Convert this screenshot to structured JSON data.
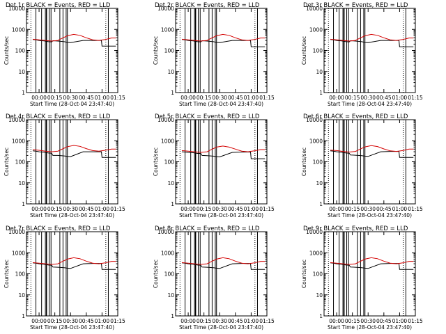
{
  "chart_data": [
    {
      "type": "line",
      "title": "Det 1r  BLACK = Events, RED = LLD",
      "xlabel": "Start Time (28-Oct-04 23:47:40)",
      "ylabel": "Counts/sec",
      "x_ticks": [
        "00:00",
        "00:15",
        "00:30",
        "00:45",
        "01:00",
        "01:15"
      ],
      "y_ticks": [
        "1",
        "10",
        "100",
        "1000",
        "10000"
      ],
      "ylim": [
        1,
        10000
      ],
      "y_scale": "log",
      "series": [
        {
          "name": "BLACK = Events",
          "color": "#000000",
          "x": [
            -0.1,
            -0.05,
            0,
            0.08,
            0.15,
            0.2,
            0.22,
            0.3,
            0.4,
            0.45,
            0.5,
            0.7,
            0.85,
            0.99,
            1.0,
            1.15,
            1.22
          ],
          "y": [
            330,
            320,
            300,
            285,
            260,
            255,
            290,
            280,
            260,
            240,
            235,
            300,
            300,
            300,
            160,
            160,
            160
          ]
        },
        {
          "name": "RED = LLD",
          "color": "#d40000",
          "x": [
            -0.1,
            0,
            0.1,
            0.2,
            0.3,
            0.35,
            0.45,
            0.55,
            0.65,
            0.75,
            0.85,
            0.95,
            1.05,
            1.15,
            1.22
          ],
          "y": [
            340,
            320,
            300,
            280,
            300,
            360,
            500,
            580,
            520,
            400,
            320,
            300,
            330,
            390,
            390
          ]
        }
      ],
      "vlines": [
        -0.05,
        0.04,
        0.1,
        0.115,
        0.12,
        0.16,
        0.19,
        0.33,
        0.38,
        0.43,
        0.45,
        1.1
      ]
    },
    {
      "type": "line",
      "title": "Det 2r  BLACK = Events, RED = LLD",
      "xlabel": "Start Time (28-Oct-04 23:47:40)",
      "ylabel": "Counts/sec",
      "x_ticks": [
        "00:00",
        "00:15",
        "00:30",
        "00:45",
        "01:00",
        "01:15"
      ],
      "y_ticks": [
        "1",
        "10",
        "100",
        "1000",
        "10000"
      ],
      "ylim": [
        1,
        10000
      ],
      "y_scale": "log",
      "series": [
        {
          "name": "BLACK = Events",
          "color": "#000000",
          "x": [
            -0.1,
            -0.05,
            0,
            0.08,
            0.15,
            0.2,
            0.22,
            0.3,
            0.4,
            0.45,
            0.5,
            0.7,
            0.85,
            0.99,
            1.0,
            1.15,
            1.22
          ],
          "y": [
            330,
            320,
            300,
            285,
            260,
            255,
            290,
            280,
            260,
            240,
            235,
            300,
            300,
            300,
            150,
            150,
            150
          ]
        },
        {
          "name": "RED = LLD",
          "color": "#d40000",
          "x": [
            -0.1,
            0,
            0.1,
            0.2,
            0.3,
            0.35,
            0.45,
            0.55,
            0.65,
            0.75,
            0.85,
            0.95,
            1.05,
            1.15,
            1.22
          ],
          "y": [
            340,
            320,
            300,
            280,
            300,
            360,
            500,
            580,
            520,
            400,
            320,
            300,
            330,
            390,
            390
          ]
        }
      ],
      "vlines": [
        -0.05,
        0.04,
        0.1,
        0.115,
        0.12,
        0.16,
        0.19,
        0.33,
        0.38,
        0.43,
        0.45,
        1.1
      ]
    },
    {
      "type": "line",
      "title": "Det 3r  BLACK = Events, RED = LLD",
      "xlabel": "Start Time (28-Oct-04 23:47:40)",
      "ylabel": "Counts/sec",
      "x_ticks": [
        "00:00",
        "00:15",
        "00:30",
        "00:45",
        "01:00",
        "01:15"
      ],
      "y_ticks": [
        "1",
        "10",
        "100",
        "1000",
        "10000"
      ],
      "ylim": [
        1,
        10000
      ],
      "y_scale": "log",
      "series": [
        {
          "name": "BLACK = Events",
          "color": "#000000",
          "x": [
            -0.1,
            -0.05,
            0,
            0.08,
            0.15,
            0.2,
            0.22,
            0.3,
            0.4,
            0.45,
            0.5,
            0.7,
            0.85,
            0.99,
            1.0,
            1.15,
            1.22
          ],
          "y": [
            330,
            320,
            300,
            285,
            260,
            255,
            290,
            280,
            260,
            240,
            235,
            300,
            300,
            300,
            150,
            150,
            150
          ]
        },
        {
          "name": "RED = LLD",
          "color": "#d40000",
          "x": [
            -0.1,
            0,
            0.1,
            0.2,
            0.3,
            0.35,
            0.45,
            0.55,
            0.65,
            0.75,
            0.85,
            0.95,
            1.05,
            1.15,
            1.22
          ],
          "y": [
            340,
            320,
            300,
            280,
            300,
            360,
            500,
            580,
            520,
            400,
            320,
            300,
            330,
            390,
            390
          ]
        }
      ],
      "vlines": [
        -0.05,
        0.04,
        0.1,
        0.115,
        0.12,
        0.16,
        0.19,
        0.33,
        0.38,
        0.43,
        0.45,
        1.1
      ]
    },
    {
      "type": "line",
      "title": "Det 4r  BLACK = Events, RED = LLD",
      "xlabel": "Start Time (28-Oct-04 23:47:40)",
      "ylabel": "Counts/sec",
      "x_ticks": [
        "00:00",
        "00:15",
        "00:30",
        "00:45",
        "01:00",
        "01:15"
      ],
      "y_ticks": [
        "1",
        "10",
        "100",
        "1000",
        "10000"
      ],
      "ylim": [
        1,
        10000
      ],
      "y_scale": "log",
      "series": [
        {
          "name": "BLACK = Events",
          "color": "#000000",
          "x": [
            -0.1,
            -0.05,
            0,
            0.08,
            0.15,
            0.2,
            0.22,
            0.3,
            0.4,
            0.45,
            0.5,
            0.7,
            0.85,
            0.99,
            1.0,
            1.15,
            1.22
          ],
          "y": [
            330,
            320,
            300,
            285,
            260,
            255,
            200,
            200,
            190,
            180,
            175,
            300,
            300,
            300,
            160,
            160,
            160
          ]
        },
        {
          "name": "RED = LLD",
          "color": "#d40000",
          "x": [
            -0.1,
            0,
            0.1,
            0.2,
            0.3,
            0.35,
            0.45,
            0.55,
            0.65,
            0.75,
            0.85,
            0.95,
            1.05,
            1.15,
            1.22
          ],
          "y": [
            380,
            350,
            320,
            300,
            320,
            380,
            520,
            600,
            540,
            420,
            340,
            320,
            350,
            400,
            400
          ]
        }
      ],
      "vlines": [
        -0.05,
        0.04,
        0.1,
        0.115,
        0.12,
        0.16,
        0.19,
        0.33,
        0.38,
        0.43,
        0.45,
        1.1
      ]
    },
    {
      "type": "line",
      "title": "Det 5r  BLACK = Events, RED = LLD",
      "xlabel": "Start Time (28-Oct-04 23:47:40)",
      "ylabel": "Counts/sec",
      "x_ticks": [
        "00:00",
        "00:15",
        "00:30",
        "00:45",
        "01:00",
        "01:15"
      ],
      "y_ticks": [
        "1",
        "10",
        "100",
        "1000",
        "10000"
      ],
      "ylim": [
        1,
        10000
      ],
      "y_scale": "log",
      "series": [
        {
          "name": "BLACK = Events",
          "color": "#000000",
          "x": [
            -0.1,
            -0.05,
            0,
            0.08,
            0.15,
            0.2,
            0.22,
            0.3,
            0.4,
            0.45,
            0.5,
            0.7,
            0.85,
            0.99,
            1.0,
            1.15,
            1.22
          ],
          "y": [
            300,
            290,
            280,
            270,
            250,
            250,
            200,
            195,
            185,
            175,
            170,
            280,
            290,
            290,
            140,
            140,
            140
          ]
        },
        {
          "name": "RED = LLD",
          "color": "#d40000",
          "x": [
            -0.1,
            0,
            0.1,
            0.2,
            0.3,
            0.35,
            0.45,
            0.55,
            0.65,
            0.75,
            0.85,
            0.95,
            1.05,
            1.15,
            1.22
          ],
          "y": [
            340,
            320,
            300,
            280,
            300,
            360,
            500,
            560,
            500,
            400,
            320,
            300,
            330,
            380,
            380
          ]
        }
      ],
      "vlines": [
        -0.05,
        0.04,
        0.1,
        0.115,
        0.12,
        0.16,
        0.19,
        0.33,
        0.38,
        0.43,
        0.45,
        1.1
      ]
    },
    {
      "type": "line",
      "title": "Det 6r  BLACK = Events, RED = LLD",
      "xlabel": "Start Time (28-Oct-04 23:47:40)",
      "ylabel": "Counts/sec",
      "x_ticks": [
        "00:00",
        "00:15",
        "00:30",
        "00:45",
        "01:00",
        "01:15"
      ],
      "y_ticks": [
        "1",
        "10",
        "100",
        "1000",
        "10000"
      ],
      "ylim": [
        1,
        10000
      ],
      "y_scale": "log",
      "series": [
        {
          "name": "BLACK = Events",
          "color": "#000000",
          "x": [
            -0.1,
            -0.05,
            0,
            0.08,
            0.15,
            0.2,
            0.22,
            0.3,
            0.4,
            0.45,
            0.5,
            0.7,
            0.85,
            0.99,
            1.0,
            1.15,
            1.22
          ],
          "y": [
            330,
            320,
            300,
            285,
            260,
            255,
            210,
            205,
            195,
            185,
            180,
            300,
            310,
            310,
            160,
            160,
            160
          ]
        },
        {
          "name": "RED = LLD",
          "color": "#d40000",
          "x": [
            -0.1,
            0,
            0.1,
            0.2,
            0.3,
            0.35,
            0.45,
            0.55,
            0.65,
            0.75,
            0.85,
            0.95,
            1.05,
            1.15,
            1.22
          ],
          "y": [
            360,
            340,
            310,
            290,
            310,
            370,
            510,
            590,
            530,
            410,
            330,
            310,
            340,
            400,
            400
          ]
        }
      ],
      "vlines": [
        -0.05,
        0.04,
        0.1,
        0.115,
        0.12,
        0.16,
        0.19,
        0.33,
        0.38,
        0.43,
        0.45,
        1.1
      ]
    },
    {
      "type": "line",
      "title": "Det 7r  BLACK = Events, RED = LLD",
      "xlabel": "Start Time (28-Oct-04 23:47:40)",
      "ylabel": "Counts/sec",
      "x_ticks": [
        "00:00",
        "00:15",
        "00:30",
        "00:45",
        "01:00",
        "01:15"
      ],
      "y_ticks": [
        "1",
        "10",
        "100",
        "1000",
        "10000"
      ],
      "ylim": [
        1,
        10000
      ],
      "y_scale": "log",
      "series": [
        {
          "name": "BLACK = Events",
          "color": "#000000",
          "x": [
            -0.1,
            -0.05,
            0,
            0.08,
            0.15,
            0.2,
            0.22,
            0.3,
            0.4,
            0.45,
            0.5,
            0.7,
            0.85,
            0.99,
            1.0,
            1.15,
            1.22
          ],
          "y": [
            330,
            320,
            300,
            285,
            260,
            255,
            210,
            205,
            195,
            185,
            180,
            300,
            310,
            310,
            160,
            160,
            160
          ]
        },
        {
          "name": "RED = LLD",
          "color": "#d40000",
          "x": [
            -0.1,
            0,
            0.1,
            0.2,
            0.3,
            0.35,
            0.45,
            0.55,
            0.65,
            0.75,
            0.85,
            0.95,
            1.05,
            1.15,
            1.22
          ],
          "y": [
            340,
            320,
            300,
            280,
            300,
            360,
            500,
            580,
            520,
            400,
            320,
            300,
            330,
            390,
            390
          ]
        }
      ],
      "vlines": [
        -0.05,
        0.04,
        0.1,
        0.115,
        0.12,
        0.16,
        0.19,
        0.33,
        0.38,
        0.43,
        0.45,
        1.1
      ]
    },
    {
      "type": "line",
      "title": "Det 8r  BLACK = Events, RED = LLD",
      "xlabel": "Start Time (28-Oct-04 23:47:40)",
      "ylabel": "Counts/sec",
      "x_ticks": [
        "00:00",
        "00:15",
        "00:30",
        "00:45",
        "01:00",
        "01:15"
      ],
      "y_ticks": [
        "1",
        "10",
        "100",
        "1000",
        "10000"
      ],
      "ylim": [
        1,
        10000
      ],
      "y_scale": "log",
      "series": [
        {
          "name": "BLACK = Events",
          "color": "#000000",
          "x": [
            -0.1,
            -0.05,
            0,
            0.08,
            0.15,
            0.2,
            0.22,
            0.3,
            0.4,
            0.45,
            0.5,
            0.7,
            0.85,
            0.99,
            1.0,
            1.15,
            1.22
          ],
          "y": [
            330,
            320,
            300,
            285,
            260,
            255,
            210,
            205,
            195,
            185,
            180,
            300,
            310,
            310,
            160,
            160,
            160
          ]
        },
        {
          "name": "RED = LLD",
          "color": "#d40000",
          "x": [
            -0.1,
            0,
            0.1,
            0.2,
            0.3,
            0.35,
            0.45,
            0.55,
            0.65,
            0.75,
            0.85,
            0.95,
            1.05,
            1.15,
            1.22
          ],
          "y": [
            340,
            320,
            300,
            280,
            300,
            360,
            500,
            580,
            520,
            400,
            320,
            300,
            330,
            390,
            390
          ]
        }
      ],
      "vlines": [
        -0.05,
        0.04,
        0.1,
        0.115,
        0.12,
        0.16,
        0.19,
        0.33,
        0.38,
        0.43,
        0.45,
        1.1
      ]
    },
    {
      "type": "line",
      "title": "Det 9r  BLACK = Events, RED = LLD",
      "xlabel": "Start Time (28-Oct-04 23:47:40)",
      "ylabel": "Counts/sec",
      "x_ticks": [
        "00:00",
        "00:15",
        "00:30",
        "00:45",
        "01:00",
        "01:15"
      ],
      "y_ticks": [
        "1",
        "10",
        "100",
        "1000",
        "10000"
      ],
      "ylim": [
        1,
        10000
      ],
      "y_scale": "log",
      "series": [
        {
          "name": "BLACK = Events",
          "color": "#000000",
          "x": [
            -0.1,
            -0.05,
            0,
            0.08,
            0.15,
            0.2,
            0.22,
            0.3,
            0.4,
            0.45,
            0.5,
            0.7,
            0.85,
            0.99,
            1.0,
            1.15,
            1.22
          ],
          "y": [
            330,
            320,
            300,
            285,
            260,
            255,
            210,
            205,
            195,
            185,
            180,
            300,
            310,
            310,
            160,
            160,
            160
          ]
        },
        {
          "name": "RED = LLD",
          "color": "#d40000",
          "x": [
            -0.1,
            0,
            0.1,
            0.2,
            0.3,
            0.35,
            0.45,
            0.55,
            0.65,
            0.75,
            0.85,
            0.95,
            1.05,
            1.15,
            1.22
          ],
          "y": [
            340,
            320,
            300,
            280,
            300,
            360,
            500,
            580,
            520,
            400,
            320,
            300,
            330,
            390,
            390
          ]
        }
      ],
      "vlines": [
        -0.05,
        0.04,
        0.1,
        0.115,
        0.12,
        0.16,
        0.19,
        0.33,
        0.38,
        0.43,
        0.45,
        1.1
      ]
    }
  ]
}
